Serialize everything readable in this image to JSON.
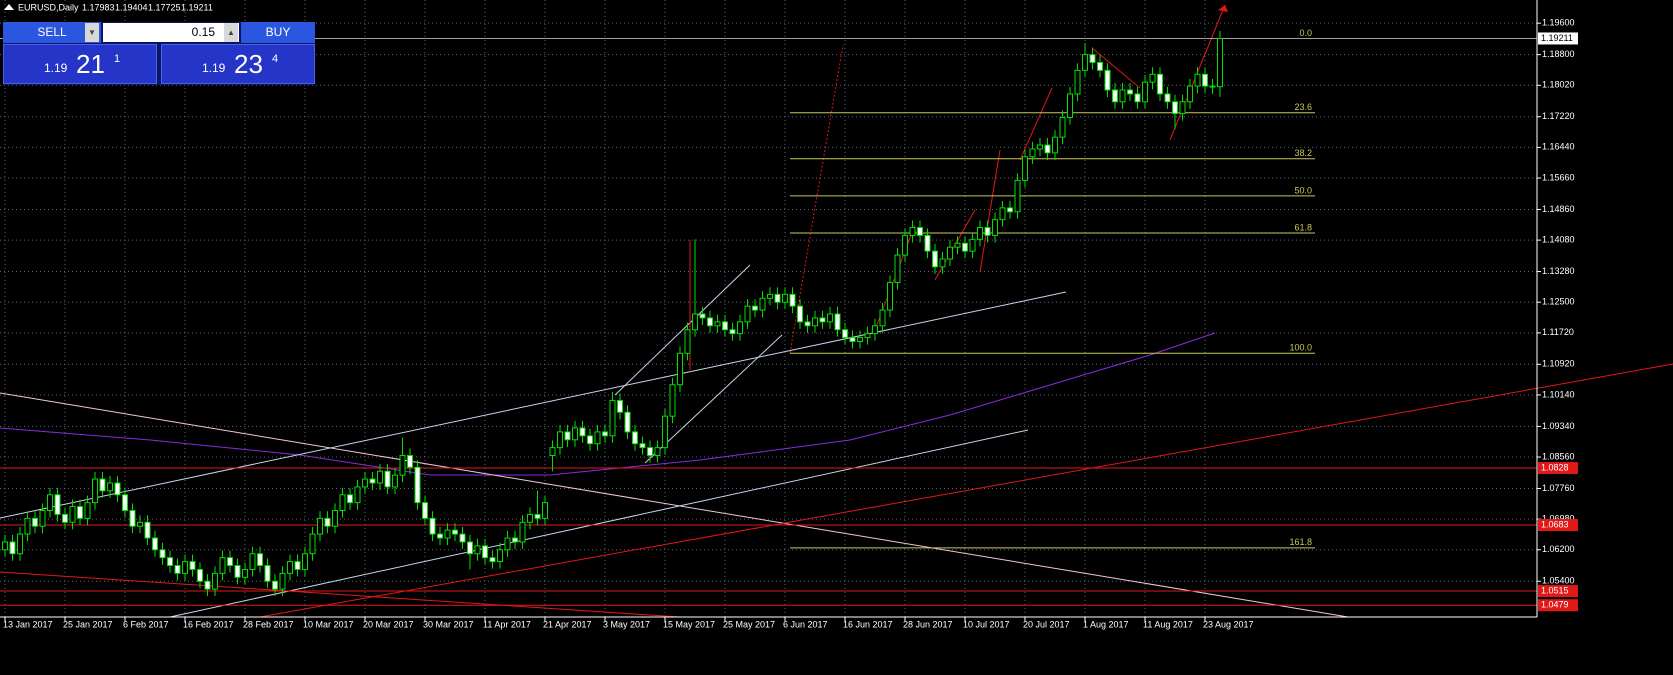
{
  "chart_data": {
    "type": "candlestick",
    "title": "EURUSD,Daily",
    "categories": [
      "13 Jan 2017",
      null,
      null,
      null,
      null,
      null,
      null,
      null,
      "25 Jan 2017",
      null,
      null,
      null,
      null,
      null,
      null,
      null,
      "6 Feb 2017",
      null,
      null,
      null,
      null,
      null,
      null,
      null,
      "16 Feb 2017",
      null,
      null,
      null,
      null,
      null,
      null,
      null,
      "28 Feb 2017",
      null,
      null,
      null,
      null,
      null,
      null,
      null,
      "10 Mar 2017",
      null,
      null,
      null,
      null,
      null,
      null,
      null,
      "20 Mar 2017",
      null,
      null,
      null,
      null,
      null,
      null,
      null,
      "30 Mar 2017",
      null,
      null,
      null,
      null,
      null,
      null,
      null,
      "11 Apr 2017",
      null,
      null,
      null,
      null,
      null,
      null,
      null,
      "21 Apr 2017",
      null,
      null,
      null,
      null,
      null,
      null,
      null,
      "3 May 2017",
      null,
      null,
      null,
      null,
      null,
      null,
      null,
      "15 May 2017",
      null,
      null,
      null,
      null,
      null,
      null,
      null,
      "25 May 2017",
      null,
      null,
      null,
      null,
      null,
      null,
      null,
      "6 Jun 2017",
      null,
      null,
      null,
      null,
      null,
      null,
      null,
      "16 Jun 2017",
      null,
      null,
      null,
      null,
      null,
      null,
      null,
      "28 Jun 2017",
      null,
      null,
      null,
      null,
      null,
      null,
      null,
      "10 Jul 2017",
      null,
      null,
      null,
      null,
      null,
      null,
      null,
      "20 Jul 2017",
      null,
      null,
      null,
      null,
      null,
      null,
      null,
      "1 Aug 2017",
      null,
      null,
      null,
      null,
      null,
      null,
      null,
      "11 Aug 2017",
      null,
      null,
      null,
      null,
      null,
      null,
      null,
      "23 Aug 2017",
      null,
      null
    ],
    "ohlc": [
      [
        1.062,
        1.0658,
        1.0602,
        1.064
      ],
      [
        1.064,
        1.0658,
        1.0592,
        1.061
      ],
      [
        1.061,
        1.0678,
        1.0592,
        1.066
      ],
      [
        1.066,
        1.0718,
        1.0642,
        1.07
      ],
      [
        1.07,
        1.0718,
        1.0662,
        1.068
      ],
      [
        1.068,
        1.0738,
        1.0662,
        1.072
      ],
      [
        1.072,
        1.0778,
        1.0702,
        1.076
      ],
      [
        1.076,
        1.0778,
        1.0692,
        1.071
      ],
      [
        1.071,
        1.0728,
        1.0672,
        1.069
      ],
      [
        1.069,
        1.0748,
        1.0672,
        1.073
      ],
      [
        1.073,
        1.0748,
        1.0682,
        1.07
      ],
      [
        1.07,
        1.0758,
        1.0682,
        1.074
      ],
      [
        1.074,
        1.0818,
        1.0722,
        1.08
      ],
      [
        1.08,
        1.0818,
        1.0752,
        1.077
      ],
      [
        1.077,
        1.0808,
        1.0752,
        1.079
      ],
      [
        1.079,
        1.0808,
        1.0742,
        1.076
      ],
      [
        1.076,
        1.0778,
        1.0702,
        1.072
      ],
      [
        1.072,
        1.0738,
        1.0662,
        1.068
      ],
      [
        1.068,
        1.0708,
        1.0662,
        1.069
      ],
      [
        1.069,
        1.0708,
        1.0632,
        1.065
      ],
      [
        1.065,
        1.0668,
        1.0602,
        1.062
      ],
      [
        1.062,
        1.0638,
        1.0582,
        1.06
      ],
      [
        1.06,
        1.0618,
        1.0562,
        1.058
      ],
      [
        1.058,
        1.0598,
        1.0542,
        1.056
      ],
      [
        1.056,
        1.0608,
        1.0542,
        1.059
      ],
      [
        1.059,
        1.0608,
        1.0552,
        1.057
      ],
      [
        1.057,
        1.0588,
        1.0522,
        1.054
      ],
      [
        1.054,
        1.0558,
        1.0502,
        1.052
      ],
      [
        1.052,
        1.0578,
        1.0502,
        1.056
      ],
      [
        1.056,
        1.0618,
        1.0542,
        1.06
      ],
      [
        1.06,
        1.0618,
        1.0562,
        1.058
      ],
      [
        1.058,
        1.0598,
        1.0532,
        1.055
      ],
      [
        1.055,
        1.0588,
        1.0532,
        1.057
      ],
      [
        1.057,
        1.0628,
        1.0552,
        1.061
      ],
      [
        1.061,
        1.0628,
        1.0562,
        1.058
      ],
      [
        1.058,
        1.0598,
        1.0522,
        1.054
      ],
      [
        1.054,
        1.0558,
        1.0502,
        1.052
      ],
      [
        1.052,
        1.0578,
        1.0502,
        1.056
      ],
      [
        1.056,
        1.0608,
        1.0542,
        1.059
      ],
      [
        1.059,
        1.0608,
        1.0552,
        1.057
      ],
      [
        1.057,
        1.0628,
        1.0552,
        1.061
      ],
      [
        1.061,
        1.0678,
        1.0592,
        1.066
      ],
      [
        1.066,
        1.0718,
        1.0642,
        1.07
      ],
      [
        1.07,
        1.0718,
        1.0662,
        1.068
      ],
      [
        1.068,
        1.0738,
        1.0662,
        1.072
      ],
      [
        1.072,
        1.0778,
        1.0702,
        1.076
      ],
      [
        1.076,
        1.0778,
        1.0722,
        1.074
      ],
      [
        1.074,
        1.0798,
        1.0722,
        1.078
      ],
      [
        1.078,
        1.0818,
        1.0762,
        1.08
      ],
      [
        1.08,
        1.0818,
        1.0772,
        1.079
      ],
      [
        1.079,
        1.0838,
        1.0772,
        1.082
      ],
      [
        1.082,
        1.0838,
        1.0762,
        1.078
      ],
      [
        1.078,
        1.0828,
        1.0762,
        1.081
      ],
      [
        1.081,
        1.0906,
        1.0792,
        1.086
      ],
      [
        1.086,
        1.0878,
        1.0812,
        1.083
      ],
      [
        1.083,
        1.0848,
        1.0722,
        1.074
      ],
      [
        1.074,
        1.0758,
        1.0682,
        1.07
      ],
      [
        1.07,
        1.0718,
        1.0642,
        1.066
      ],
      [
        1.066,
        1.0678,
        1.0632,
        1.065
      ],
      [
        1.065,
        1.0688,
        1.0632,
        1.067
      ],
      [
        1.067,
        1.0688,
        1.0642,
        1.066
      ],
      [
        1.066,
        1.0678,
        1.0622,
        1.064
      ],
      [
        1.064,
        1.0658,
        1.057,
        1.061
      ],
      [
        1.061,
        1.0648,
        1.0592,
        1.063
      ],
      [
        1.063,
        1.0648,
        1.0582,
        1.06
      ],
      [
        1.06,
        1.0618,
        1.0572,
        1.059
      ],
      [
        1.059,
        1.0638,
        1.0572,
        1.062
      ],
      [
        1.062,
        1.0668,
        1.0602,
        1.065
      ],
      [
        1.065,
        1.0668,
        1.0622,
        1.064
      ],
      [
        1.064,
        1.0708,
        1.0622,
        1.069
      ],
      [
        1.069,
        1.0728,
        1.0672,
        1.071
      ],
      [
        1.071,
        1.077,
        1.0682,
        1.07
      ],
      [
        1.07,
        1.0758,
        1.0682,
        1.074
      ],
      [
        1.086,
        1.0898,
        1.082,
        1.088
      ],
      [
        1.088,
        1.0938,
        1.0862,
        1.092
      ],
      [
        1.092,
        1.0938,
        1.0882,
        1.09
      ],
      [
        1.09,
        1.0948,
        1.0882,
        1.093
      ],
      [
        1.093,
        1.0948,
        1.0892,
        1.091
      ],
      [
        1.091,
        1.0928,
        1.0872,
        1.089
      ],
      [
        1.089,
        1.0938,
        1.0872,
        1.092
      ],
      [
        1.092,
        1.0938,
        1.0892,
        1.091
      ],
      [
        1.091,
        1.1022,
        1.0892,
        1.1
      ],
      [
        1.1,
        1.1018,
        1.0952,
        1.097
      ],
      [
        1.097,
        1.0988,
        1.0902,
        1.092
      ],
      [
        1.092,
        1.0938,
        1.0872,
        1.089
      ],
      [
        1.089,
        1.0908,
        1.0862,
        1.088
      ],
      [
        1.088,
        1.0898,
        1.0842,
        1.086
      ],
      [
        1.086,
        1.0898,
        1.0842,
        1.088
      ],
      [
        1.088,
        1.0978,
        1.0862,
        1.096
      ],
      [
        1.096,
        1.1058,
        1.0942,
        1.104
      ],
      [
        1.104,
        1.1138,
        1.1022,
        1.112
      ],
      [
        1.112,
        1.1198,
        1.1102,
        1.118
      ],
      [
        1.118,
        1.141,
        1.1162,
        1.122
      ],
      [
        1.122,
        1.1238,
        1.1192,
        1.121
      ],
      [
        1.121,
        1.1228,
        1.1172,
        1.119
      ],
      [
        1.119,
        1.1218,
        1.1172,
        1.12
      ],
      [
        1.12,
        1.1218,
        1.1162,
        1.118
      ],
      [
        1.118,
        1.1198,
        1.1152,
        1.117
      ],
      [
        1.117,
        1.1218,
        1.1152,
        1.12
      ],
      [
        1.12,
        1.1258,
        1.1182,
        1.124
      ],
      [
        1.124,
        1.1258,
        1.1212,
        1.123
      ],
      [
        1.123,
        1.1278,
        1.1212,
        1.126
      ],
      [
        1.126,
        1.1288,
        1.1242,
        1.127
      ],
      [
        1.127,
        1.1288,
        1.1232,
        1.125
      ],
      [
        1.125,
        1.1288,
        1.1232,
        1.127
      ],
      [
        1.127,
        1.1288,
        1.1222,
        1.124
      ],
      [
        1.124,
        1.1258,
        1.1182,
        1.12
      ],
      [
        1.12,
        1.1218,
        1.1172,
        1.119
      ],
      [
        1.119,
        1.1228,
        1.1172,
        1.121
      ],
      [
        1.121,
        1.1228,
        1.1182,
        1.12
      ],
      [
        1.12,
        1.1238,
        1.1182,
        1.122
      ],
      [
        1.122,
        1.1238,
        1.1162,
        1.118
      ],
      [
        1.118,
        1.1198,
        1.1142,
        1.116
      ],
      [
        1.116,
        1.1178,
        1.1132,
        1.115
      ],
      [
        1.115,
        1.1178,
        1.1132,
        1.116
      ],
      [
        1.116,
        1.1188,
        1.1142,
        1.117
      ],
      [
        1.117,
        1.1208,
        1.1152,
        1.119
      ],
      [
        1.119,
        1.1248,
        1.1172,
        1.123
      ],
      [
        1.123,
        1.1318,
        1.1212,
        1.13
      ],
      [
        1.13,
        1.1388,
        1.1282,
        1.137
      ],
      [
        1.137,
        1.1438,
        1.1352,
        1.142
      ],
      [
        1.142,
        1.1458,
        1.1402,
        1.144
      ],
      [
        1.144,
        1.1458,
        1.1402,
        1.142
      ],
      [
        1.142,
        1.1438,
        1.1362,
        1.138
      ],
      [
        1.138,
        1.1398,
        1.1322,
        1.134
      ],
      [
        1.134,
        1.1378,
        1.1322,
        1.136
      ],
      [
        1.136,
        1.1408,
        1.1342,
        1.139
      ],
      [
        1.139,
        1.1418,
        1.1372,
        1.14
      ],
      [
        1.14,
        1.1418,
        1.1362,
        1.138
      ],
      [
        1.138,
        1.1428,
        1.1362,
        1.141
      ],
      [
        1.141,
        1.1458,
        1.1392,
        1.144
      ],
      [
        1.144,
        1.1458,
        1.1402,
        1.142
      ],
      [
        1.142,
        1.1478,
        1.1402,
        1.146
      ],
      [
        1.146,
        1.1508,
        1.1442,
        1.149
      ],
      [
        1.149,
        1.1508,
        1.1462,
        1.148
      ],
      [
        1.148,
        1.1578,
        1.1462,
        1.156
      ],
      [
        1.156,
        1.1638,
        1.1542,
        1.162
      ],
      [
        1.162,
        1.1658,
        1.1602,
        1.164
      ],
      [
        1.164,
        1.1668,
        1.1622,
        1.165
      ],
      [
        1.165,
        1.1668,
        1.1612,
        1.163
      ],
      [
        1.163,
        1.1688,
        1.1612,
        1.167
      ],
      [
        1.167,
        1.1738,
        1.1652,
        1.172
      ],
      [
        1.172,
        1.1798,
        1.1702,
        1.178
      ],
      [
        1.178,
        1.1858,
        1.1762,
        1.184
      ],
      [
        1.184,
        1.191,
        1.1822,
        1.188
      ],
      [
        1.188,
        1.1898,
        1.1842,
        1.186
      ],
      [
        1.186,
        1.1878,
        1.1822,
        1.184
      ],
      [
        1.184,
        1.1858,
        1.1772,
        1.179
      ],
      [
        1.179,
        1.1808,
        1.1742,
        1.176
      ],
      [
        1.176,
        1.1808,
        1.1742,
        1.179
      ],
      [
        1.179,
        1.1808,
        1.1762,
        1.178
      ],
      [
        1.178,
        1.1798,
        1.1742,
        1.176
      ],
      [
        1.176,
        1.1828,
        1.1742,
        1.181
      ],
      [
        1.181,
        1.1848,
        1.1792,
        1.183
      ],
      [
        1.183,
        1.1848,
        1.1762,
        1.178
      ],
      [
        1.178,
        1.1798,
        1.1742,
        1.176
      ],
      [
        1.176,
        1.1778,
        1.169,
        1.173
      ],
      [
        1.173,
        1.1778,
        1.1712,
        1.176
      ],
      [
        1.176,
        1.1818,
        1.1742,
        1.18
      ],
      [
        1.18,
        1.1848,
        1.1782,
        1.183
      ],
      [
        1.183,
        1.1848,
        1.1782,
        1.18
      ],
      [
        1.18,
        1.1818,
        1.178,
        1.1798
      ],
      [
        1.17983,
        1.19404,
        1.17725,
        1.19211
      ]
    ],
    "candle_color": "#00e000",
    "bull_fill": "#000000",
    "bear_fill": "#ffffff",
    "ylim": [
      1.0449,
      1.2019
    ],
    "yticks": [
      {
        "value": 1.196,
        "label": "1.19600"
      },
      {
        "value": 1.188,
        "label": "1.18800"
      },
      {
        "value": 1.1802,
        "label": "1.18020"
      },
      {
        "value": 1.1722,
        "label": "1.17220"
      },
      {
        "value": 1.1644,
        "label": "1.16440"
      },
      {
        "value": 1.1566,
        "label": "1.15660"
      },
      {
        "value": 1.1486,
        "label": "1.14860"
      },
      {
        "value": 1.1408,
        "label": "1.14080"
      },
      {
        "value": 1.1328,
        "label": "1.13280"
      },
      {
        "value": 1.125,
        "label": "1.12500"
      },
      {
        "value": 1.1172,
        "label": "1.11720"
      },
      {
        "value": 1.1092,
        "label": "1.10920"
      },
      {
        "value": 1.1014,
        "label": "1.10140"
      },
      {
        "value": 1.0934,
        "label": "1.09340"
      },
      {
        "value": 1.0856,
        "label": "1.08560"
      },
      {
        "value": 1.0776,
        "label": "1.07760"
      },
      {
        "value": 1.0698,
        "label": "1.06980"
      },
      {
        "value": 1.062,
        "label": "1.06200"
      },
      {
        "value": 1.054,
        "label": "1.05400"
      }
    ],
    "grid": true,
    "grid_color": "#5a6478",
    "levels": [
      1.0828,
      1.0683,
      1.0515,
      1.0479
    ],
    "level_color": "#e01818",
    "current_price_color": "#a0a0a0",
    "fibonacci": {
      "range": [
        1.112,
        1.1921
      ],
      "color": "#c8c85a",
      "levels": [
        {
          "value": 0,
          "label": "0.0"
        },
        23.6,
        38.2,
        {
          "value": 50,
          "label": "50.0"
        },
        61.8,
        {
          "value": 100,
          "label": "100.0"
        },
        161.8
      ]
    }
  },
  "trade_panel": {
    "sell": "SELL",
    "buy": "BUY",
    "volume": 0.15,
    "bid": {
      "big": "1.19",
      "pips": "21",
      "point": "1"
    },
    "ask": {
      "big": "1.19",
      "pips": "23",
      "point": "4"
    }
  }
}
